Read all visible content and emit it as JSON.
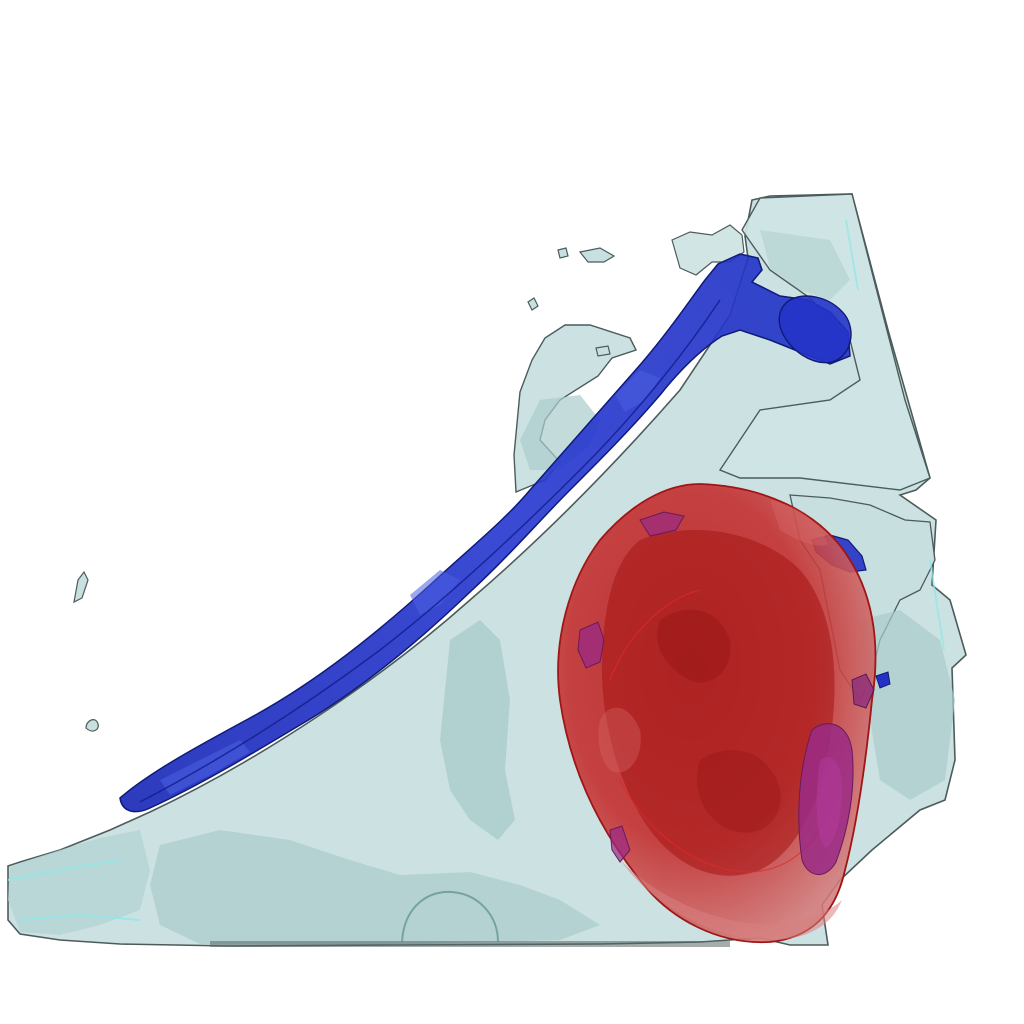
{
  "scene": {
    "background": "#ffffff",
    "colors": {
      "tissue_fill": "#c8dfdf",
      "tissue_shadow": "#a9cccb",
      "tissue_outline": "#4c5b5b",
      "tissue_edge_cyan": "#8fe7ea",
      "vessel_blue": "#2432c4",
      "vessel_blue_dark": "#101d8c",
      "vessel_blue_light": "#4a5fe0",
      "mass_red": "#c32424",
      "mass_red_dark": "#8f1010",
      "mass_red_light": "#d86a6a",
      "mass_purple": "#9a2a86"
    },
    "structures": [
      {
        "name": "tissue-volume",
        "color_key": "tissue_fill"
      },
      {
        "name": "vessel",
        "color_key": "vessel_blue"
      },
      {
        "name": "mass",
        "color_key": "mass_red"
      },
      {
        "name": "mass-inclusions",
        "color_key": "mass_purple"
      }
    ]
  }
}
